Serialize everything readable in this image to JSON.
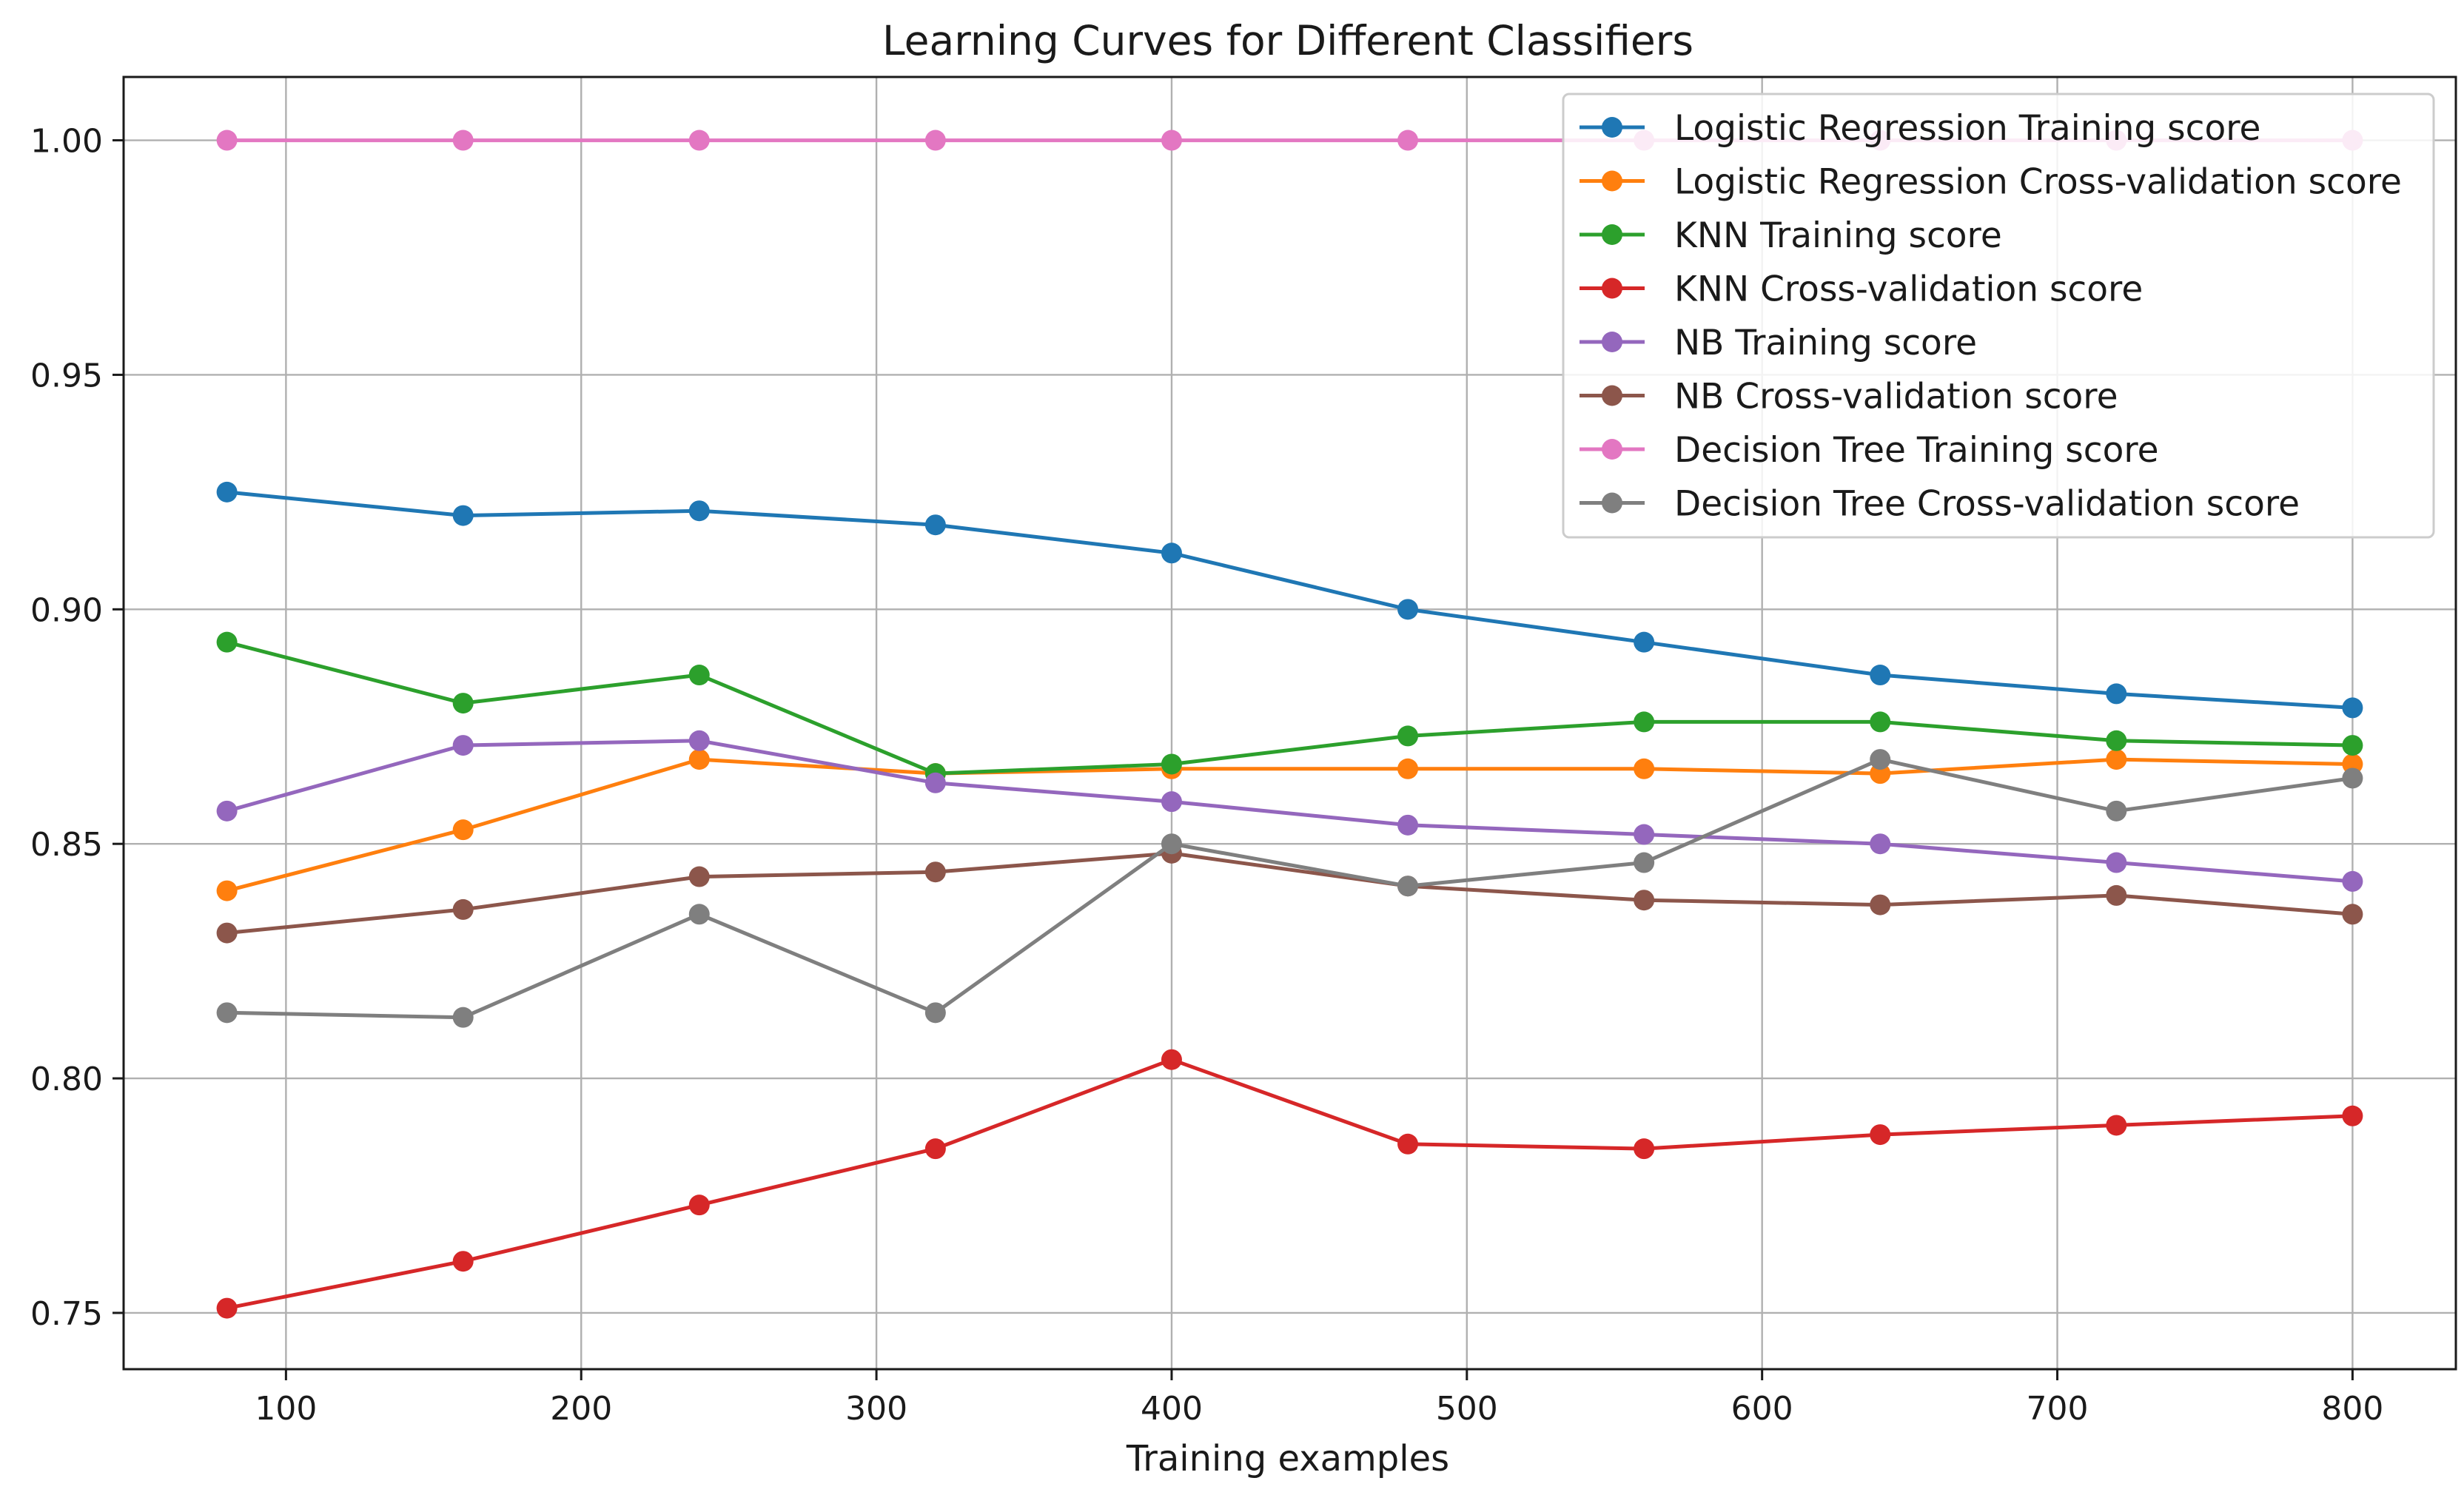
{
  "chart_data": {
    "type": "line",
    "title": "Learning Curves for Different Classifiers",
    "xlabel": "Training examples",
    "ylabel": "",
    "xlim": [
      45,
      835
    ],
    "ylim": [
      0.738,
      1.0135
    ],
    "grid": true,
    "legend_position": "top-right",
    "x_ticks": [
      100,
      200,
      300,
      400,
      500,
      600,
      700,
      800
    ],
    "x_tick_labels": [
      "100",
      "200",
      "300",
      "400",
      "500",
      "600",
      "700",
      "800"
    ],
    "y_ticks": [
      0.75,
      0.8,
      0.85,
      0.9,
      0.95,
      1.0
    ],
    "y_tick_labels": [
      "0.75",
      "0.80",
      "0.85",
      "0.90",
      "0.95",
      "1.00"
    ],
    "x": [
      80,
      160,
      240,
      320,
      400,
      480,
      560,
      640,
      720,
      800
    ],
    "series": [
      {
        "name": "Logistic Regression Training score",
        "color": "#1f77b4",
        "values": [
          0.925,
          0.92,
          0.921,
          0.918,
          0.912,
          0.9,
          0.893,
          0.886,
          0.882,
          0.879
        ]
      },
      {
        "name": "Logistic Regression Cross-validation score",
        "color": "#ff7f0e",
        "values": [
          0.84,
          0.853,
          0.868,
          0.865,
          0.866,
          0.866,
          0.866,
          0.865,
          0.868,
          0.867
        ]
      },
      {
        "name": "KNN Training score",
        "color": "#2ca02c",
        "values": [
          0.893,
          0.88,
          0.886,
          0.865,
          0.867,
          0.873,
          0.876,
          0.876,
          0.872,
          0.871
        ]
      },
      {
        "name": "KNN Cross-validation score",
        "color": "#d62728",
        "values": [
          0.751,
          0.761,
          0.773,
          0.785,
          0.804,
          0.786,
          0.785,
          0.788,
          0.79,
          0.792
        ]
      },
      {
        "name": "NB Training score",
        "color": "#9467bd",
        "values": [
          0.857,
          0.871,
          0.872,
          0.863,
          0.859,
          0.854,
          0.852,
          0.85,
          0.846,
          0.842
        ]
      },
      {
        "name": "NB Cross-validation score",
        "color": "#8c564b",
        "values": [
          0.831,
          0.836,
          0.843,
          0.844,
          0.848,
          0.841,
          0.838,
          0.837,
          0.839,
          0.835
        ]
      },
      {
        "name": "Decision Tree Training score",
        "color": "#e377c2",
        "values": [
          1.0,
          1.0,
          1.0,
          1.0,
          1.0,
          1.0,
          1.0,
          1.0,
          1.0,
          1.0
        ]
      },
      {
        "name": "Decision Tree Cross-validation score",
        "color": "#7f7f7f",
        "values": [
          0.814,
          0.813,
          0.835,
          0.814,
          0.85,
          0.841,
          0.846,
          0.868,
          0.857,
          0.864
        ]
      }
    ]
  }
}
